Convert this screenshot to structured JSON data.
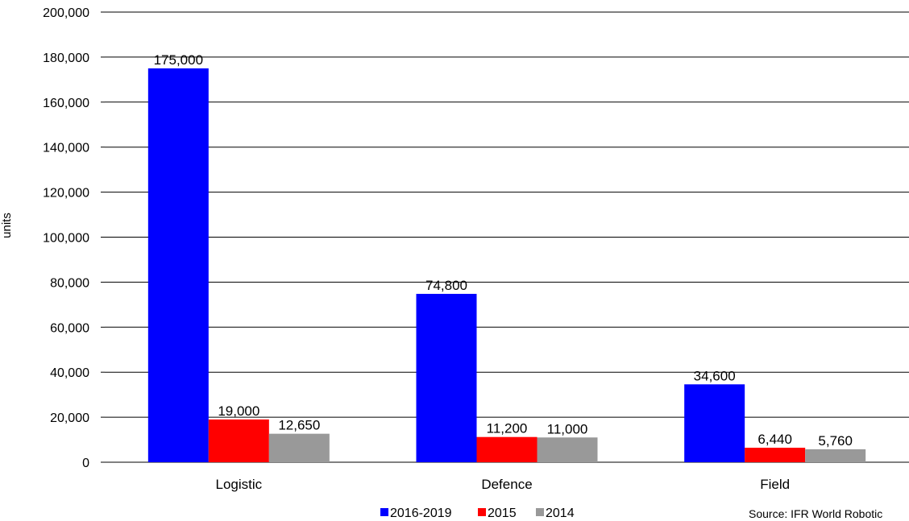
{
  "chart_data": {
    "type": "bar",
    "categories": [
      "Logistic",
      "Defence",
      "Field"
    ],
    "series": [
      {
        "name": "2016-2019",
        "values": [
          175000,
          74800,
          34600
        ],
        "color": "#0000ff"
      },
      {
        "name": "2015",
        "values": [
          19000,
          11200,
          6440
        ],
        "color": "#ff0000"
      },
      {
        "name": "2014",
        "values": [
          12650,
          11000,
          5760
        ],
        "color": "#999999"
      }
    ],
    "data_labels": [
      [
        "175,000",
        "74,800",
        "34,600"
      ],
      [
        "19,000",
        "11,200",
        "6,440"
      ],
      [
        "12,650",
        "11,000",
        "5,760"
      ]
    ],
    "ylabel": "units",
    "ylim": [
      0,
      200000
    ],
    "yticks": [
      0,
      20000,
      40000,
      60000,
      80000,
      100000,
      120000,
      140000,
      160000,
      180000,
      200000
    ],
    "ytick_labels": [
      "0",
      "20,000",
      "40,000",
      "60,000",
      "80,000",
      "100,000",
      "120,000",
      "140,000",
      "160,000",
      "180,000",
      "200,000"
    ],
    "grid": true,
    "legend_position": "bottom"
  },
  "source_text": "Source: IFR World Robotic"
}
